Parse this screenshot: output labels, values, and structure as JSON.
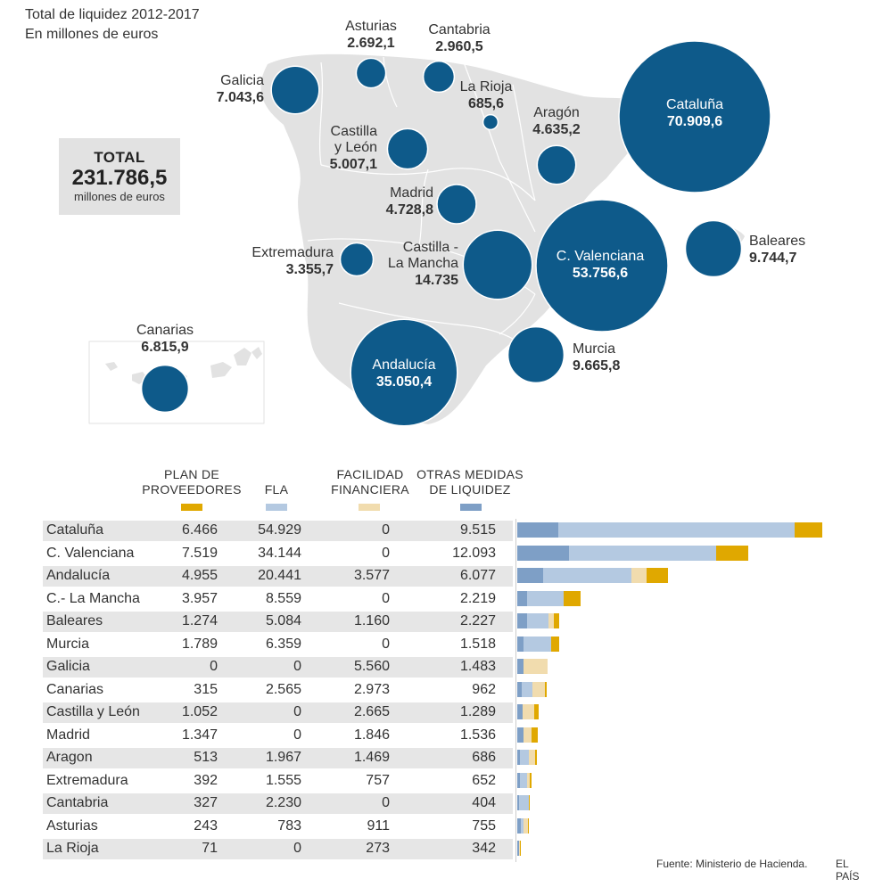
{
  "header": {
    "title": "Total de liquidez 2012-2017",
    "subtitle": "En millones de euros"
  },
  "total": {
    "label": "TOTAL",
    "value": "231.786,5",
    "unit": "millones de euros"
  },
  "colors": {
    "bubble": "#0e5a8a",
    "map": "#e2e2e2",
    "proveedores": "#e0a800",
    "fla": "#b4c9e1",
    "facilidad": "#f1dcae",
    "otras": "#7e9fc6"
  },
  "map_regions": [
    {
      "name": "Asturias",
      "value": "2.692,1",
      "total": 2692.1
    },
    {
      "name": "Cantabria",
      "value": "2.960,5",
      "total": 2960.5
    },
    {
      "name": "Galicia",
      "value": "7.043,6",
      "total": 7043.6
    },
    {
      "name": "La Rioja",
      "value": "685,6",
      "total": 685.6
    },
    {
      "name": "Aragón",
      "value": "4.635,2",
      "total": 4635.2
    },
    {
      "name": "Cataluña",
      "value": "70.909,6",
      "total": 70909.6
    },
    {
      "name": "Castilla y León",
      "value": "5.007,1",
      "total": 5007.1
    },
    {
      "name": "Madrid",
      "value": "4.728,8",
      "total": 4728.8
    },
    {
      "name": "Extremadura",
      "value": "3.355,7",
      "total": 3355.7
    },
    {
      "name": "Castilla - La Mancha",
      "value": "14.735",
      "total": 14735
    },
    {
      "name": "C. Valenciana",
      "value": "53.756,6",
      "total": 53756.6
    },
    {
      "name": "Baleares",
      "value": "9.744,7",
      "total": 9744.7
    },
    {
      "name": "Canarias",
      "value": "6.815,9",
      "total": 6815.9
    },
    {
      "name": "Andalucía",
      "value": "35.050,4",
      "total": 35050.4
    },
    {
      "name": "Murcia",
      "value": "9.665,8",
      "total": 9665.8
    }
  ],
  "chart_data": {
    "type": "bar",
    "stacked": true,
    "orientation": "horizontal",
    "series_order": [
      "otras",
      "fla",
      "facilidad",
      "proveedores"
    ],
    "columns": [
      {
        "key": "proveedores",
        "label_lines": [
          "PLAN DE",
          "PROVEEDORES"
        ]
      },
      {
        "key": "fla",
        "label_lines": [
          "FLA"
        ]
      },
      {
        "key": "facilidad",
        "label_lines": [
          "FACILIDAD",
          "FINANCIERA"
        ]
      },
      {
        "key": "otras",
        "label_lines": [
          "OTRAS MEDIDAS",
          "DE LIQUIDEZ"
        ]
      }
    ],
    "rows": [
      {
        "region": "Cataluña",
        "proveedores": 6466,
        "fla": 54929,
        "facilidad": 0,
        "otras": 9515,
        "text": [
          "6.466",
          "54.929",
          "0",
          "9.515"
        ]
      },
      {
        "region": "C. Valenciana",
        "proveedores": 7519,
        "fla": 34144,
        "facilidad": 0,
        "otras": 12093,
        "text": [
          "7.519",
          "34.144",
          "0",
          "12.093"
        ]
      },
      {
        "region": "Andalucía",
        "proveedores": 4955,
        "fla": 20441,
        "facilidad": 3577,
        "otras": 6077,
        "text": [
          "4.955",
          "20.441",
          "3.577",
          "6.077"
        ]
      },
      {
        "region": "C.- La Mancha",
        "proveedores": 3957,
        "fla": 8559,
        "facilidad": 0,
        "otras": 2219,
        "text": [
          "3.957",
          "8.559",
          "0",
          "2.219"
        ]
      },
      {
        "region": "Baleares",
        "proveedores": 1274,
        "fla": 5084,
        "facilidad": 1160,
        "otras": 2227,
        "text": [
          "1.274",
          "5.084",
          "1.160",
          "2.227"
        ]
      },
      {
        "region": "Murcia",
        "proveedores": 1789,
        "fla": 6359,
        "facilidad": 0,
        "otras": 1518,
        "text": [
          "1.789",
          "6.359",
          "0",
          "1.518"
        ]
      },
      {
        "region": "Galicia",
        "proveedores": 0,
        "fla": 0,
        "facilidad": 5560,
        "otras": 1483,
        "text": [
          "0",
          "0",
          "5.560",
          "1.483"
        ]
      },
      {
        "region": "Canarias",
        "proveedores": 315,
        "fla": 2565,
        "facilidad": 2973,
        "otras": 962,
        "text": [
          "315",
          "2.565",
          "2.973",
          "962"
        ]
      },
      {
        "region": "Castilla y León",
        "proveedores": 1052,
        "fla": 0,
        "facilidad": 2665,
        "otras": 1289,
        "text": [
          "1.052",
          "0",
          "2.665",
          "1.289"
        ]
      },
      {
        "region": "Madrid",
        "proveedores": 1347,
        "fla": 0,
        "facilidad": 1846,
        "otras": 1536,
        "text": [
          "1.347",
          "0",
          "1.846",
          "1.536"
        ]
      },
      {
        "region": "Aragon",
        "proveedores": 513,
        "fla": 1967,
        "facilidad": 1469,
        "otras": 686,
        "text": [
          "513",
          "1.967",
          "1.469",
          "686"
        ]
      },
      {
        "region": "Extremadura",
        "proveedores": 392,
        "fla": 1555,
        "facilidad": 757,
        "otras": 652,
        "text": [
          "392",
          "1.555",
          "757",
          "652"
        ]
      },
      {
        "region": "Cantabria",
        "proveedores": 327,
        "fla": 2230,
        "facilidad": 0,
        "otras": 404,
        "text": [
          "327",
          "2.230",
          "0",
          "404"
        ]
      },
      {
        "region": "Asturias",
        "proveedores": 243,
        "fla": 783,
        "facilidad": 911,
        "otras": 755,
        "text": [
          "243",
          "783",
          "911",
          "755"
        ]
      },
      {
        "region": "La Rioja",
        "proveedores": 71,
        "fla": 0,
        "facilidad": 273,
        "otras": 342,
        "text": [
          "71",
          "0",
          "273",
          "342"
        ]
      }
    ]
  },
  "footer": {
    "source": "Fuente: Ministerio de Hacienda.",
    "brand": "EL PAÍS"
  }
}
